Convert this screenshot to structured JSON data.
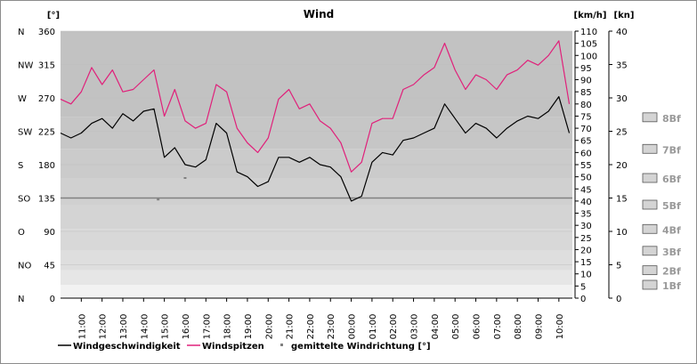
{
  "chart_data": {
    "type": "line",
    "title": "Wind",
    "left_axis": {
      "unit": "[°]",
      "ylim": [
        0,
        360
      ],
      "ticks": [
        0,
        45,
        90,
        135,
        180,
        225,
        270,
        315,
        360
      ],
      "directions": [
        "N",
        "NO",
        "O",
        "SO",
        "S",
        "SW",
        "W",
        "NW",
        "N"
      ]
    },
    "kmh_axis": {
      "unit": "[km/h]",
      "ylim": [
        0,
        110
      ],
      "ticks": [
        0,
        5,
        10,
        15,
        20,
        25,
        30,
        35,
        40,
        45,
        50,
        55,
        60,
        65,
        70,
        75,
        80,
        85,
        90,
        95,
        100,
        105,
        110
      ]
    },
    "kn_axis": {
      "unit": "[kn]",
      "ylim": [
        0,
        40
      ],
      "ticks": [
        0,
        5,
        10,
        15,
        20,
        25,
        30,
        35,
        40
      ]
    },
    "beaufort": [
      {
        "label": "1Bf",
        "kmh": 5.5
      },
      {
        "label": "2Bf",
        "kmh": 11.5
      },
      {
        "label": "3Bf",
        "kmh": 19.5
      },
      {
        "label": "4Bf",
        "kmh": 28.5
      },
      {
        "label": "5Bf",
        "kmh": 38.5
      },
      {
        "label": "6Bf",
        "kmh": 49.5
      },
      {
        "label": "7Bf",
        "kmh": 61.5
      },
      {
        "label": "8Bf",
        "kmh": 74.5
      }
    ],
    "x_ticks": [
      "11:00",
      "12:00",
      "13:00",
      "14:00",
      "15:00",
      "16:00",
      "17:00",
      "18:00",
      "19:00",
      "20:00",
      "21:00",
      "22:00",
      "23:00",
      "00:00",
      "01:00",
      "02:00",
      "03:00",
      "04:00",
      "05:00",
      "06:00",
      "07:00",
      "08:00",
      "09:00",
      "10:00"
    ],
    "time_hours": [
      10.0,
      10.5,
      11.0,
      11.5,
      12.0,
      12.5,
      13.0,
      13.5,
      14.0,
      14.5,
      15.0,
      15.5,
      16.0,
      16.5,
      17.0,
      17.5,
      18.0,
      18.5,
      19.0,
      19.5,
      20.0,
      20.5,
      21.0,
      21.5,
      22.0,
      22.5,
      23.0,
      23.5,
      24.0,
      24.5,
      25.0,
      25.5,
      26.0,
      26.5,
      27.0,
      27.5,
      28.0,
      28.5,
      29.0,
      29.5,
      30.0,
      30.5,
      31.0,
      31.5,
      32.0,
      32.5,
      33.0,
      33.5,
      34.0,
      34.5
    ],
    "series": [
      {
        "name": "Windgeschwindigkeit",
        "color": "#000000",
        "unit": "km/h",
        "values": [
          68,
          66,
          68,
          72,
          74,
          70,
          76,
          73,
          77,
          78,
          58,
          62,
          55,
          54,
          57,
          72,
          68,
          52,
          50,
          46,
          48,
          58,
          58,
          56,
          58,
          55,
          54,
          50,
          40,
          42,
          56,
          60,
          59,
          65,
          66,
          68,
          70,
          80,
          74,
          68,
          72,
          70,
          66,
          70,
          73,
          75,
          74,
          77,
          83,
          68
        ]
      },
      {
        "name": "Windspitzen",
        "color": "#e0207a",
        "unit": "km/h",
        "values": [
          82,
          80,
          85,
          95,
          88,
          94,
          85,
          86,
          90,
          94,
          75,
          86,
          73,
          70,
          72,
          88,
          85,
          70,
          64,
          60,
          66,
          82,
          86,
          78,
          80,
          73,
          70,
          64,
          52,
          56,
          72,
          74,
          74,
          86,
          88,
          92,
          95,
          105,
          94,
          86,
          92,
          90,
          86,
          92,
          94,
          98,
          96,
          100,
          106,
          80
        ]
      }
    ],
    "wind_direction": {
      "name": "gemittelte Windrichtung [°]",
      "color": "#808080",
      "value": 135,
      "scatter": [
        {
          "time": 16.0,
          "value": 162
        },
        {
          "time": 14.7,
          "value": 133
        }
      ]
    },
    "grid": true,
    "legend_position": "bottom"
  }
}
